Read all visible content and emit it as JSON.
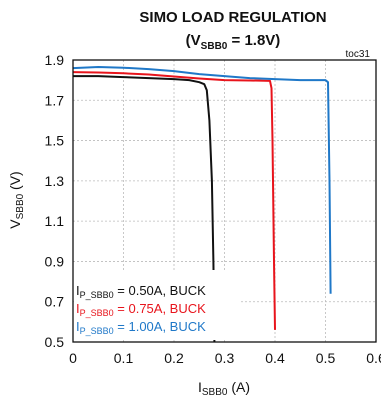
{
  "chart_data": {
    "type": "line",
    "title": {
      "line1": "SIMO LOAD REGULATION",
      "line2_prefix": "(V",
      "line2_sub": "SBB0",
      "line2_suffix": " = 1.8V)"
    },
    "annotation": "toc31",
    "xlabel": {
      "main": "I",
      "sub": "SBB0",
      "unit": " (A)"
    },
    "ylabel": {
      "main": "V",
      "sub": "SBB0",
      "unit": " (V)"
    },
    "xlim": [
      0,
      0.6
    ],
    "ylim": [
      0.5,
      1.9
    ],
    "x_ticks": [
      "0",
      "0.1",
      "0.2",
      "0.3",
      "0.4",
      "0.5",
      "0.6"
    ],
    "x_tick_values": [
      0,
      0.1,
      0.2,
      0.3,
      0.4,
      0.5,
      0.6
    ],
    "y_ticks": [
      "0.5",
      "0.7",
      "0.9",
      "1.1",
      "1.3",
      "1.5",
      "1.7",
      "1.9"
    ],
    "y_tick_values": [
      0.5,
      0.7,
      0.9,
      1.1,
      1.3,
      1.5,
      1.7,
      1.9
    ],
    "grid": true,
    "legend_position": "bottom-left",
    "series": [
      {
        "name": "I_P_SBB0 = 0.50A, BUCK",
        "label_main": "I",
        "label_sub": "P_SBB0",
        "label_rest": " = 0.50A, BUCK",
        "color": "#111111",
        "x": [
          0,
          0.05,
          0.1,
          0.15,
          0.2,
          0.23,
          0.25,
          0.26,
          0.265,
          0.27,
          0.275,
          0.278,
          0.28
        ],
        "y": [
          1.82,
          1.82,
          1.815,
          1.81,
          1.805,
          1.8,
          1.79,
          1.78,
          1.75,
          1.6,
          1.3,
          0.9,
          0.5
        ]
      },
      {
        "name": "I_P_SBB0 = 0.75A, BUCK",
        "label_main": "I",
        "label_sub": "P_SBB0",
        "label_rest": " = 0.75A, BUCK",
        "color": "#e8141c",
        "x": [
          0,
          0.05,
          0.1,
          0.15,
          0.2,
          0.25,
          0.3,
          0.35,
          0.38,
          0.39,
          0.393,
          0.395,
          0.398,
          0.4
        ],
        "y": [
          1.84,
          1.838,
          1.834,
          1.828,
          1.818,
          1.808,
          1.8,
          1.798,
          1.797,
          1.796,
          1.76,
          1.5,
          0.9,
          0.56
        ]
      },
      {
        "name": "I_P_SBB0 = 1.00A, BUCK",
        "label_main": "I",
        "label_sub": "P_SBB0",
        "label_rest": " = 1.00A, BUCK",
        "color": "#1f78c8",
        "x": [
          0,
          0.05,
          0.1,
          0.15,
          0.2,
          0.25,
          0.3,
          0.35,
          0.4,
          0.45,
          0.5,
          0.505,
          0.508,
          0.51
        ],
        "y": [
          1.86,
          1.865,
          1.862,
          1.855,
          1.845,
          1.83,
          1.82,
          1.81,
          1.805,
          1.8,
          1.8,
          1.79,
          1.3,
          0.74
        ]
      }
    ]
  }
}
